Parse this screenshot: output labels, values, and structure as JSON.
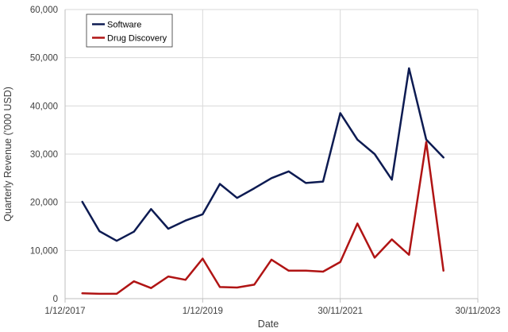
{
  "chart_data": {
    "type": "line",
    "title": "",
    "xlabel": "Date",
    "ylabel": "Quarterly Revenue ('000 USD)",
    "ylim": [
      0,
      60000
    ],
    "y_ticks": [
      0,
      10000,
      20000,
      30000,
      40000,
      50000,
      60000
    ],
    "y_tick_labels": [
      "0",
      "10,000",
      "20,000",
      "30,000",
      "40,000",
      "50,000",
      "60,000"
    ],
    "x_tick_labels": [
      "1/12/2017",
      "1/12/2019",
      "30/11/2021",
      "30/11/2023"
    ],
    "x_tick_positions": [
      0,
      24,
      48,
      72
    ],
    "xlim": [
      0,
      72
    ],
    "grid": true,
    "legend_position": "top-left",
    "series": [
      {
        "name": "Software",
        "color": "#0d1b52",
        "x": [
          3,
          6,
          9,
          12,
          15,
          18,
          21,
          24,
          27,
          30,
          33,
          36,
          39,
          42,
          45,
          48,
          51,
          54,
          57,
          60,
          63,
          66
        ],
        "values": [
          20100,
          14000,
          12000,
          13900,
          18600,
          14500,
          16200,
          17500,
          23800,
          20900,
          22900,
          25000,
          26400,
          24000,
          24300,
          38500,
          33000,
          30000,
          24700,
          47800,
          33000,
          29300
        ]
      },
      {
        "name": "Drug Discovery",
        "color": "#b01414",
        "x": [
          3,
          6,
          9,
          12,
          15,
          18,
          21,
          24,
          27,
          30,
          33,
          36,
          39,
          42,
          45,
          48,
          51,
          54,
          57,
          60,
          63,
          66
        ],
        "values": [
          1100,
          1000,
          1000,
          3600,
          2200,
          4600,
          3900,
          8300,
          2400,
          2300,
          2900,
          8100,
          5800,
          5800,
          5600,
          7600,
          15600,
          8500,
          12300,
          9100,
          32500,
          5800
        ]
      }
    ]
  }
}
